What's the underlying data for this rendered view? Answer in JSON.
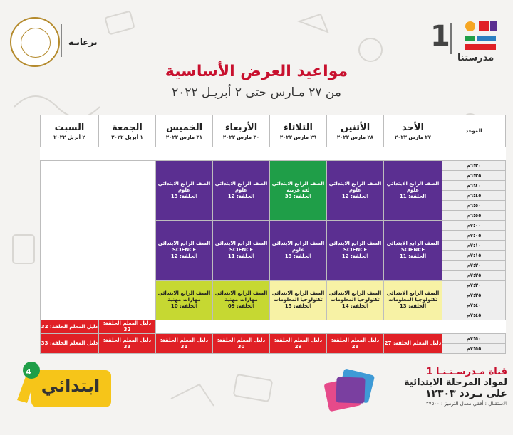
{
  "header": {
    "title": "مواعيد العرض الأساسية",
    "subtitle": "من ٢٧ مـارس حتى ٢ أبريـل ٢٠٢٢",
    "sponsor": "برعايـة",
    "brand_name": "مدرستنا",
    "brand_number": "1"
  },
  "schedule": {
    "time_header": "الموعد",
    "days": [
      {
        "name": "الأحد",
        "date": "٢٧ مارس ٢٠٢٢"
      },
      {
        "name": "الأثنين",
        "date": "٢٨ مارس ٢٠٢٢"
      },
      {
        "name": "الثلاثاء",
        "date": "٢٩ مارس ٢٠٢٢"
      },
      {
        "name": "الأربعاء",
        "date": "٣٠ مارس ٢٠٢٢"
      },
      {
        "name": "الخميس",
        "date": "٣١ مارس ٢٠٢٢"
      },
      {
        "name": "الجمعة",
        "date": "١ أبريل ٢٠٢٢"
      },
      {
        "name": "السبت",
        "date": "٢ أبريل ٢٠٢٢"
      }
    ],
    "times": [
      "٦:٣٠م",
      "٦:٣٥م",
      "٦:٤٠م",
      "٦:٤٥م",
      "٦:٥٠م",
      "٦:٥٥م",
      "٧:٠٠م",
      "٧:٠٥م",
      "٧:١٠م",
      "٧:١٥م",
      "٧:٢٠م",
      "٧:٢٥م",
      "٧:٣٠م",
      "٧:٣٥م",
      "٧:٤٠م",
      "٧:٤٥م",
      "٧:٥٠م",
      "٧:٥٥م"
    ],
    "block1": {
      "sun": {
        "l1": "الصف الرابع الابتدائي",
        "l2": "علوم",
        "l3": "الحلقة: 11"
      },
      "mon": {
        "l1": "الصف الرابع الابتدائي",
        "l2": "علوم",
        "l3": "الحلقة: 12"
      },
      "tue": {
        "l1": "الصف الرابع الابتدائي",
        "l2": "لغة عربية",
        "l3": "الحلقة: 33"
      },
      "wed": {
        "l1": "الصف الرابع الابتدائي",
        "l2": "علوم",
        "l3": "الحلقة: 12"
      },
      "thu": {
        "l1": "الصف الرابع الابتدائي",
        "l2": "علوم",
        "l3": "الحلقة: 13"
      }
    },
    "block2": {
      "sun": {
        "l1": "الصف الرابع الابتدائي",
        "l2": "SCIENCE",
        "l3": "الحلقة: 11"
      },
      "mon": {
        "l1": "الصف الرابع الابتدائي",
        "l2": "SCIENCE",
        "l3": "الحلقة: 12"
      },
      "tue": {
        "l1": "الصف الرابع الابتدائي",
        "l2": "علوم",
        "l3": "الحلقة: 13"
      },
      "wed": {
        "l1": "الصف الرابع الابتدائي",
        "l2": "SCIENCE",
        "l3": "الحلقة: 11"
      },
      "thu": {
        "l1": "الصف الرابع الابتدائي",
        "l2": "SCIENCE",
        "l3": "الحلقة: 12"
      }
    },
    "block3": {
      "sun": {
        "l1": "الصف الرابع الابتدائي",
        "l2": "تكنولوجيا المعلومات",
        "l3": "الحلقة: 13"
      },
      "mon": {
        "l1": "الصف الرابع الابتدائي",
        "l2": "تكنولوجيا المعلومات",
        "l3": "الحلقة: 14"
      },
      "tue": {
        "l1": "الصف الرابع الابتدائي",
        "l2": "تكنولوجيا المعلومات",
        "l3": "الحلقة: 15"
      },
      "wed": {
        "l1": "الصف الرابع الابتدائي",
        "l2": "مهارات مهنية",
        "l3": "الحلقة: 09"
      },
      "thu": {
        "l1": "الصف الرابع الابتدائي",
        "l2": "مهارات مهنية",
        "l3": "الحلقة: 10"
      }
    },
    "guide_row1": {
      "fri": "دليل المعلم الحلقة: 32",
      "sat": "دليل المعلم الحلقة: 32"
    },
    "guide_row2": {
      "sun": "دليل المعلم الحلقة: 27",
      "mon": "دليل المعلم الحلقة: 28",
      "tue": "دليل المعلم الحلقة: 29",
      "wed": "دليل المعلم الحلقة: 30",
      "thu": "دليل المعلم الحلقة: 31",
      "fri": "دليل المعلم الحلقة: 33",
      "sat": "دليل المعلم الحلقة: 33"
    }
  },
  "footer": {
    "grade_label": "ابتدائي",
    "grade_number": "4",
    "channel_line1": "قناة مـدرسـتـنـا 1",
    "channel_line2": "لمواد المرحلة الابتدائية",
    "channel_line3": "على تـردد ١٢٣٠٣",
    "reception": "الاستقبال : أفقي معدل الترميز : ٢٧٥٠٠"
  },
  "colors": {
    "red": "#e02026",
    "purple": "#5b2f91",
    "green": "#1f9e48",
    "lime": "#c6d832",
    "pale_yellow": "#f7f2a5",
    "title_red": "#c8102e"
  }
}
